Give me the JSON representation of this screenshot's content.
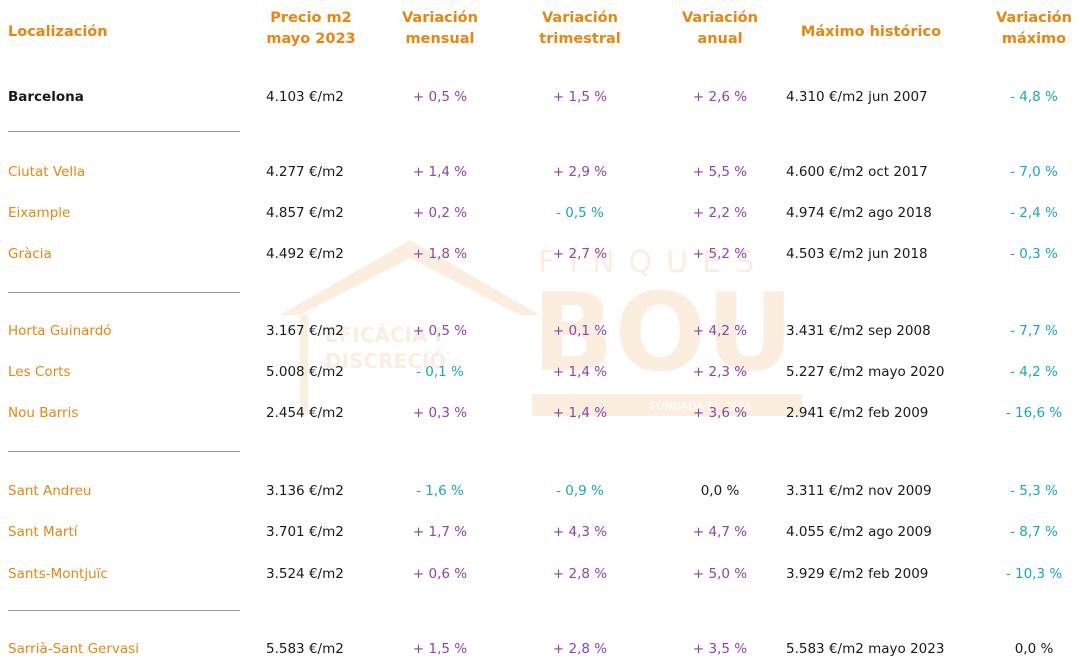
{
  "watermark": {
    "brand_top": "FINQUES",
    "brand_main": "BOU",
    "tagline_1": "EFICÀCIA I",
    "tagline_2": "DISCRECIÓ",
    "since": "FUNDADA EL 1961"
  },
  "headers": {
    "location": "Localización",
    "price": "Precio m2\nmayo 2023",
    "monthly": "Variación\nmensual",
    "quarterly": "Variación\ntrimestral",
    "annual": "Variación\nanual",
    "historic_max": "Máximo histórico",
    "max_variation": "Variación\nmáximo"
  },
  "colors": {
    "header": "#e8860f",
    "positive": "#8e44ad",
    "negative": "#17a7c4"
  },
  "rows": [
    {
      "location": "Barcelona",
      "price": "4.103 €/m2",
      "monthly": "+ 0,5 %",
      "quarterly": "+ 1,5 %",
      "annual": "+ 2,6 %",
      "historic_max": "4.310 €/m2 jun 2007",
      "max_variation": "- 4,8 %"
    },
    {
      "location": "Ciutat Vella",
      "price": "4.277 €/m2",
      "monthly": "+ 1,4 %",
      "quarterly": "+ 2,9 %",
      "annual": "+ 5,5 %",
      "historic_max": "4.600 €/m2 oct 2017",
      "max_variation": "- 7,0 %"
    },
    {
      "location": "Eixample",
      "price": "4.857 €/m2",
      "monthly": "+ 0,2 %",
      "quarterly": "- 0,5 %",
      "annual": "+ 2,2 %",
      "historic_max": "4.974 €/m2 ago 2018",
      "max_variation": "- 2,4 %"
    },
    {
      "location": "Gràcia",
      "price": "4.492 €/m2",
      "monthly": "+ 1,8 %",
      "quarterly": "+ 2,7 %",
      "annual": "+ 5,2 %",
      "historic_max": "4.503 €/m2 jun 2018",
      "max_variation": "- 0,3 %"
    },
    {
      "location": "Horta Guinardó",
      "price": "3.167 €/m2",
      "monthly": "+ 0,5 %",
      "quarterly": "+ 0,1 %",
      "annual": "+ 4,2 %",
      "historic_max": "3.431 €/m2 sep 2008",
      "max_variation": "- 7,7 %"
    },
    {
      "location": "Les Corts",
      "price": "5.008 €/m2",
      "monthly": "- 0,1 %",
      "quarterly": "+ 1,4 %",
      "annual": "+ 2,3 %",
      "historic_max": "5.227 €/m2 mayo 2020",
      "max_variation": "- 4,2 %"
    },
    {
      "location": "Nou Barris",
      "price": "2.454 €/m2",
      "monthly": "+ 0,3 %",
      "quarterly": "+ 1,4 %",
      "annual": "+ 3,6 %",
      "historic_max": "2.941 €/m2 feb 2009",
      "max_variation": "- 16,6 %"
    },
    {
      "location": "Sant Andreu",
      "price": "3.136 €/m2",
      "monthly": "- 1,6 %",
      "quarterly": "- 0,9 %",
      "annual": "0,0 %",
      "historic_max": "3.311 €/m2 nov 2009",
      "max_variation": "- 5,3 %"
    },
    {
      "location": "Sant Martí",
      "price": "3.701 €/m2",
      "monthly": "+ 1,7 %",
      "quarterly": "+ 4,3 %",
      "annual": "+ 4,7 %",
      "historic_max": "4.055 €/m2 ago 2009",
      "max_variation": "- 8,7 %"
    },
    {
      "location": "Sants-Montjuïc",
      "price": "3.524 €/m2",
      "monthly": "+ 0,6 %",
      "quarterly": "+ 2,8 %",
      "annual": "+ 5,0 %",
      "historic_max": "3.929 €/m2 feb 2009",
      "max_variation": "- 10,3 %"
    },
    {
      "location": "Sarrià-Sant Gervasi",
      "price": "5.583 €/m2",
      "monthly": "+ 1,5 %",
      "quarterly": "+ 2,8 %",
      "annual": "+ 3,5 %",
      "historic_max": "5.583 €/m2 mayo 2023",
      "max_variation": "0,0 %"
    }
  ]
}
